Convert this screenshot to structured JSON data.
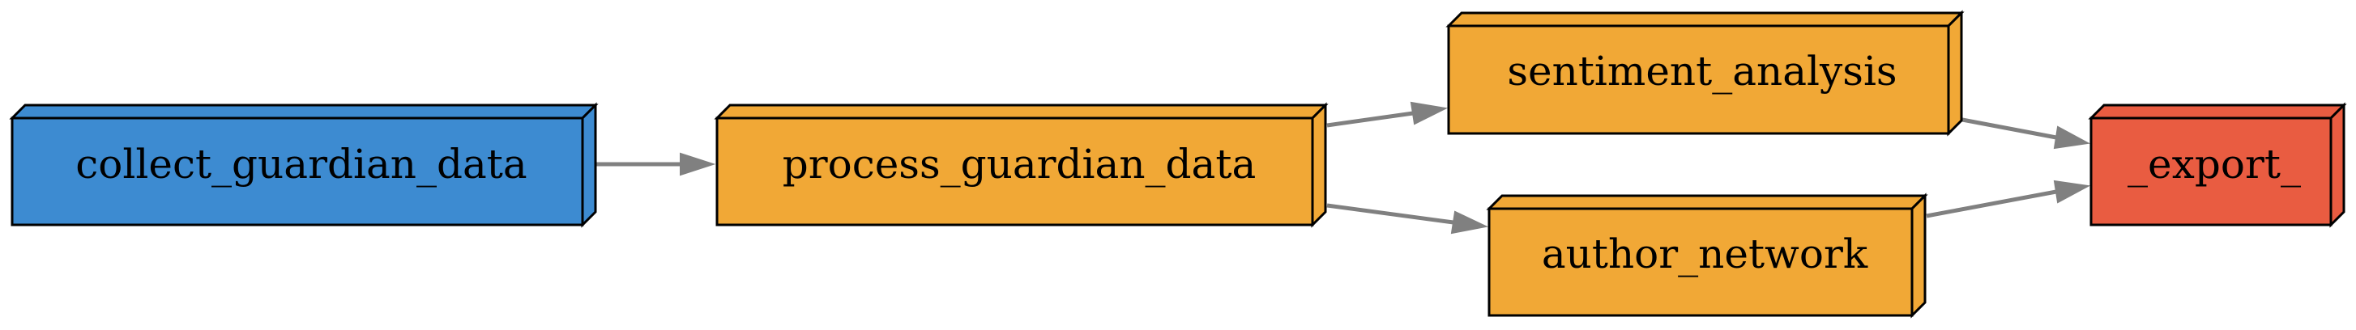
{
  "nodes": [
    {
      "id": "collect_guardian_data",
      "label": "collect_guardian_data",
      "color": "#3d8bd1"
    },
    {
      "id": "process_guardian_data",
      "label": "process_guardian_data",
      "color": "#f1a836"
    },
    {
      "id": "sentiment_analysis",
      "label": "sentiment_analysis",
      "color": "#f1a836"
    },
    {
      "id": "author_network",
      "label": "author_network",
      "color": "#f1a836"
    },
    {
      "id": "export",
      "label": "_export_",
      "color": "#e95c41"
    }
  ],
  "edges": [
    {
      "from": "collect_guardian_data",
      "to": "process_guardian_data"
    },
    {
      "from": "process_guardian_data",
      "to": "sentiment_analysis"
    },
    {
      "from": "process_guardian_data",
      "to": "author_network"
    },
    {
      "from": "sentiment_analysis",
      "to": "export"
    },
    {
      "from": "author_network",
      "to": "export"
    }
  ],
  "colors": {
    "edge": "#808080",
    "outline": "#000000"
  }
}
